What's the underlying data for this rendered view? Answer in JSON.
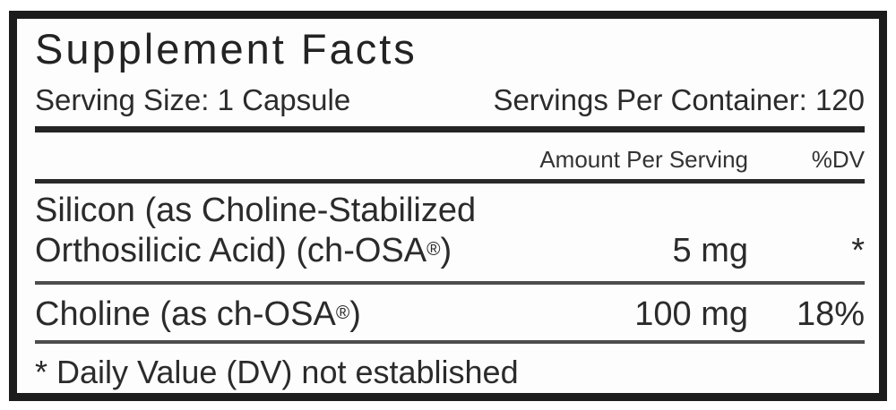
{
  "label": {
    "title": "Supplement Facts",
    "serving_size": "Serving Size: 1 Capsule",
    "servings_per_container": "Servings Per Container: 120",
    "columns": {
      "amount": "Amount Per Serving",
      "dv": "%DV"
    },
    "rows": [
      {
        "name_line1": "Silicon (as Choline-Stabilized",
        "name_line2_pre": "Orthosilicic Acid) (ch-OSA",
        "trademark": "®",
        "name_line2_post": ")",
        "amount": "5 mg",
        "dv": "*"
      },
      {
        "name_pre": "Choline (as ch-OSA",
        "trademark": "®",
        "name_post": ")",
        "amount": "100 mg",
        "dv": "18%"
      }
    ],
    "footnote": "* Daily Value (DV) not established",
    "colors": {
      "border": "#1c1c1c",
      "text": "#2b2b2b",
      "rule_dark": "#242424",
      "rule_light": "#4d4d4d"
    }
  }
}
